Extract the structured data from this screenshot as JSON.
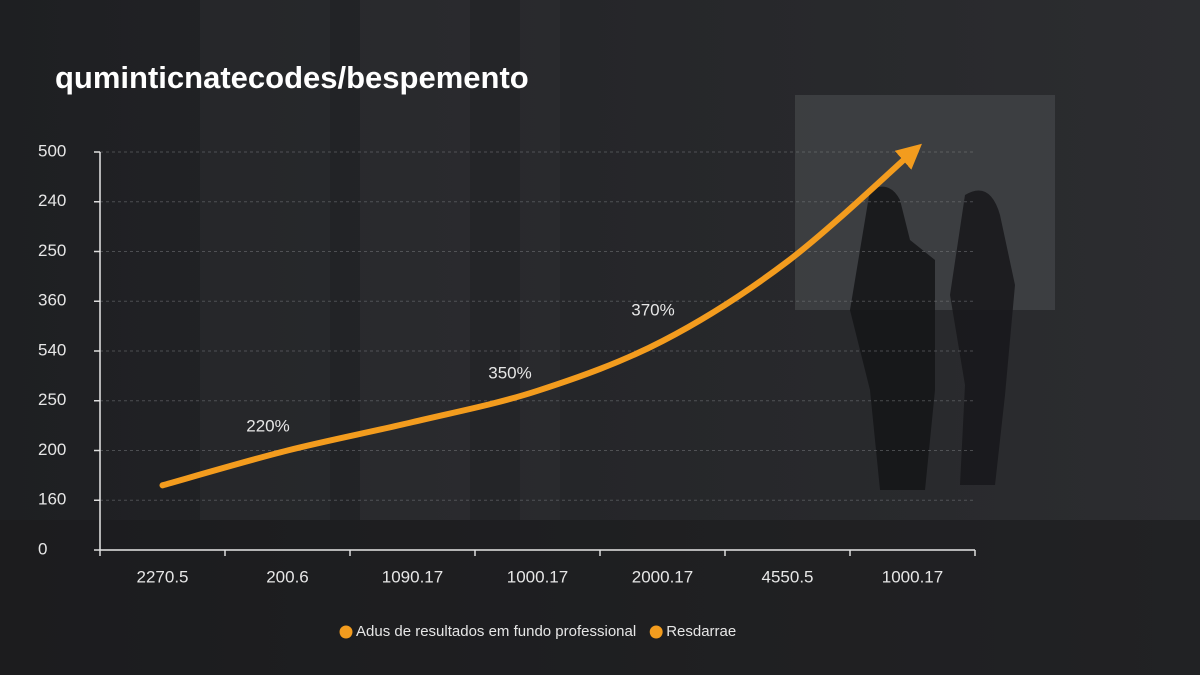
{
  "chart_data": {
    "type": "line",
    "title": "quminticnatecodes/bespemento",
    "categories": [
      "2270.5",
      "200.6",
      "1090.17",
      "1000.17",
      "2000.17",
      "4550.5",
      "1000.17"
    ],
    "series": [
      {
        "name": "Adus de resultados em fundo professional",
        "color": "#f39c1e",
        "values": [
          1.3,
          2.0,
          2.57,
          3.2,
          4.2,
          5.8,
          8.0
        ]
      }
    ],
    "legend": [
      {
        "name": "Adus de resultados em fundo professional",
        "color": "#f39c1e"
      },
      {
        "name": "Resdarrae",
        "color": "#f39c1e"
      }
    ],
    "annotations": [
      "220%",
      "350%",
      "370%"
    ],
    "ylim": [
      0,
      8
    ],
    "yticks": [
      0,
      {
        "value": 1,
        "label": "160"
      },
      {
        "value": 2,
        "label": "200"
      },
      {
        "value": 3,
        "label": "250"
      },
      {
        "value": 4,
        "label": "540"
      },
      {
        "value": 5,
        "label": "360"
      },
      {
        "value": 6,
        "label": "250"
      },
      {
        "value": 7,
        "label": "240"
      },
      {
        "value": 8,
        "label": "500"
      }
    ],
    "grid": true
  }
}
